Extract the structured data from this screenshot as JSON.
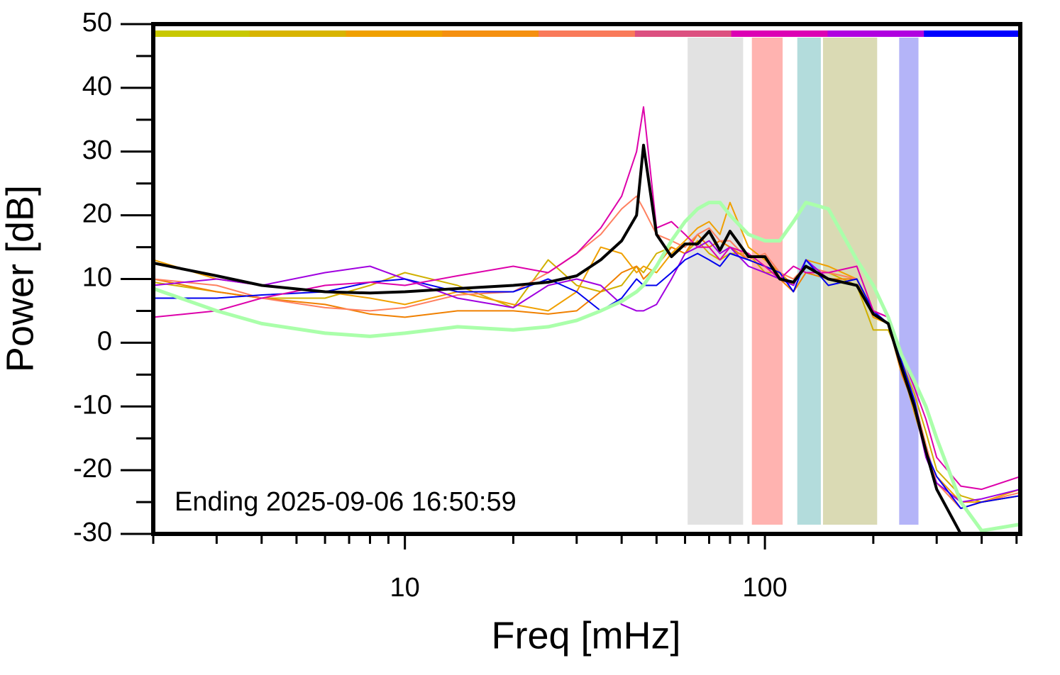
{
  "chart_data": {
    "type": "line",
    "xlabel": "Freq [mHz]",
    "ylabel": "Power [dB]",
    "annotation": "Ending 2025-09-06 16:50:59",
    "xscale": "log",
    "xlim": [
      2,
      512
    ],
    "ylim": [
      -30,
      50
    ],
    "xticks": [
      10,
      100
    ],
    "xminor_ticks": [
      2,
      3,
      4,
      5,
      6,
      7,
      8,
      9,
      20,
      30,
      40,
      50,
      60,
      70,
      80,
      90,
      200,
      300,
      400,
      500
    ],
    "yticks": [
      -30,
      -20,
      -10,
      0,
      10,
      20,
      30,
      40,
      50
    ],
    "yminor_ticks": [
      -25,
      -15,
      -5,
      5,
      15,
      25,
      35,
      45
    ],
    "color_strip": [
      "#c8c800",
      "#d8b400",
      "#f0a000",
      "#f59010",
      "#f97a5a",
      "#dc5080",
      "#dc00b4",
      "#b000e0",
      "#0000ff"
    ],
    "bands": [
      {
        "x0": 61,
        "x1": 87,
        "color": "#e2e2e2"
      },
      {
        "x0": 92,
        "x1": 112,
        "color": "#ffb3b0"
      },
      {
        "x0": 123,
        "x1": 143,
        "color": "#b3dcdc"
      },
      {
        "x0": 145,
        "x1": 205,
        "color": "#dadab4"
      },
      {
        "x0": 236,
        "x1": 267,
        "color": "#b4b4f8"
      }
    ],
    "x": [
      2,
      3,
      4,
      6,
      8,
      10,
      14,
      20,
      25,
      30,
      35,
      40,
      44,
      46,
      50,
      55,
      60,
      65,
      70,
      75,
      80,
      90,
      100,
      110,
      120,
      130,
      150,
      180,
      200,
      220,
      240,
      260,
      280,
      300,
      350,
      400,
      512
    ],
    "series": [
      {
        "color": "#d0b000",
        "width": 2,
        "values": [
          9.5,
          8,
          7,
          7,
          9,
          11,
          9,
          5.5,
          13,
          9,
          8,
          9,
          12,
          11,
          14,
          15,
          14,
          16,
          14,
          13,
          14,
          14,
          11,
          11,
          10,
          12,
          11,
          9,
          2,
          2,
          -3,
          -8,
          -14,
          -20,
          -24,
          -25,
          -24
        ]
      },
      {
        "color": "#f08000",
        "width": 2,
        "values": [
          10,
          8,
          7,
          6,
          4.5,
          4,
          5,
          5,
          4.5,
          5,
          8,
          11,
          12,
          10,
          12,
          15,
          14,
          17,
          15,
          16,
          15,
          13,
          12,
          10,
          8,
          11,
          10,
          10,
          4,
          3,
          -5,
          -10,
          -17,
          -22,
          -26,
          -25,
          -24
        ]
      },
      {
        "color": "#f0a000",
        "width": 2,
        "values": [
          13,
          10,
          9,
          8,
          7,
          6,
          8,
          6,
          5,
          8,
          15,
          14,
          11,
          12,
          11,
          14,
          16,
          18,
          19,
          17,
          22,
          15,
          13,
          11,
          9,
          13,
          12,
          10,
          4,
          3,
          -4,
          -11,
          -17,
          -21,
          -25,
          -25,
          -23
        ]
      },
      {
        "color": "#ff8060",
        "width": 2,
        "values": [
          10,
          9,
          7,
          5.5,
          5,
          5.5,
          7.5,
          8,
          11,
          14,
          17,
          21,
          23,
          21,
          17,
          16,
          15,
          17,
          18,
          16,
          16,
          13,
          14,
          11,
          10,
          12,
          11,
          10,
          5,
          4,
          -3,
          -9,
          -16,
          -22,
          -26,
          -25,
          -23.5
        ]
      },
      {
        "color": "#a000e0",
        "width": 2,
        "values": [
          9,
          10,
          9,
          11,
          12,
          10,
          7,
          5.5,
          9,
          10,
          9,
          6,
          5,
          5,
          6,
          10,
          14,
          15,
          16,
          14,
          15,
          12,
          11,
          10,
          9,
          13,
          10,
          9,
          5,
          4,
          -4,
          -10,
          -18,
          -22,
          -25,
          -24.5,
          -23
        ]
      },
      {
        "color": "#0000ee",
        "width": 2,
        "values": [
          7,
          7,
          7.5,
          8,
          9.5,
          10,
          8,
          8,
          10,
          8,
          5,
          7,
          10,
          9,
          9,
          11,
          13,
          14,
          13,
          12,
          14,
          13,
          12,
          11,
          8,
          13,
          9,
          10,
          5,
          3,
          -3,
          -9,
          -17,
          -21,
          -26,
          -25,
          -24
        ]
      },
      {
        "color": "#dd00aa",
        "width": 2,
        "values": [
          4,
          5,
          7,
          9,
          9.5,
          9,
          10.5,
          12,
          11,
          14,
          18,
          23,
          30,
          37,
          18,
          19,
          17,
          15,
          15,
          13,
          15,
          14,
          12,
          10,
          12,
          11,
          11,
          12,
          5,
          4,
          -2,
          -7,
          -12,
          -18,
          -22.5,
          -23,
          -21
        ]
      },
      {
        "color": "#aaffaa",
        "width": 5,
        "values": [
          8.5,
          5,
          3,
          1.5,
          1,
          1.5,
          2.5,
          2,
          2.5,
          3.5,
          5,
          6.5,
          8,
          9,
          12,
          16,
          19,
          21,
          22,
          22,
          20,
          17,
          16,
          16,
          19,
          22,
          21,
          13,
          9,
          4,
          -2,
          -6,
          -10,
          -15,
          -25,
          -29.5,
          -28.5
        ]
      },
      {
        "color": "#000000",
        "width": 4,
        "values": [
          12.5,
          10.5,
          9,
          8,
          7.8,
          8,
          8.5,
          9,
          9.5,
          10.5,
          13,
          16,
          20,
          31,
          17,
          13.5,
          15.5,
          15.5,
          17.5,
          14.5,
          17.5,
          13.5,
          13.5,
          10,
          9.5,
          12,
          10,
          9,
          4.5,
          3,
          -4,
          -10,
          -17,
          -23,
          -30,
          null,
          null
        ]
      }
    ]
  }
}
